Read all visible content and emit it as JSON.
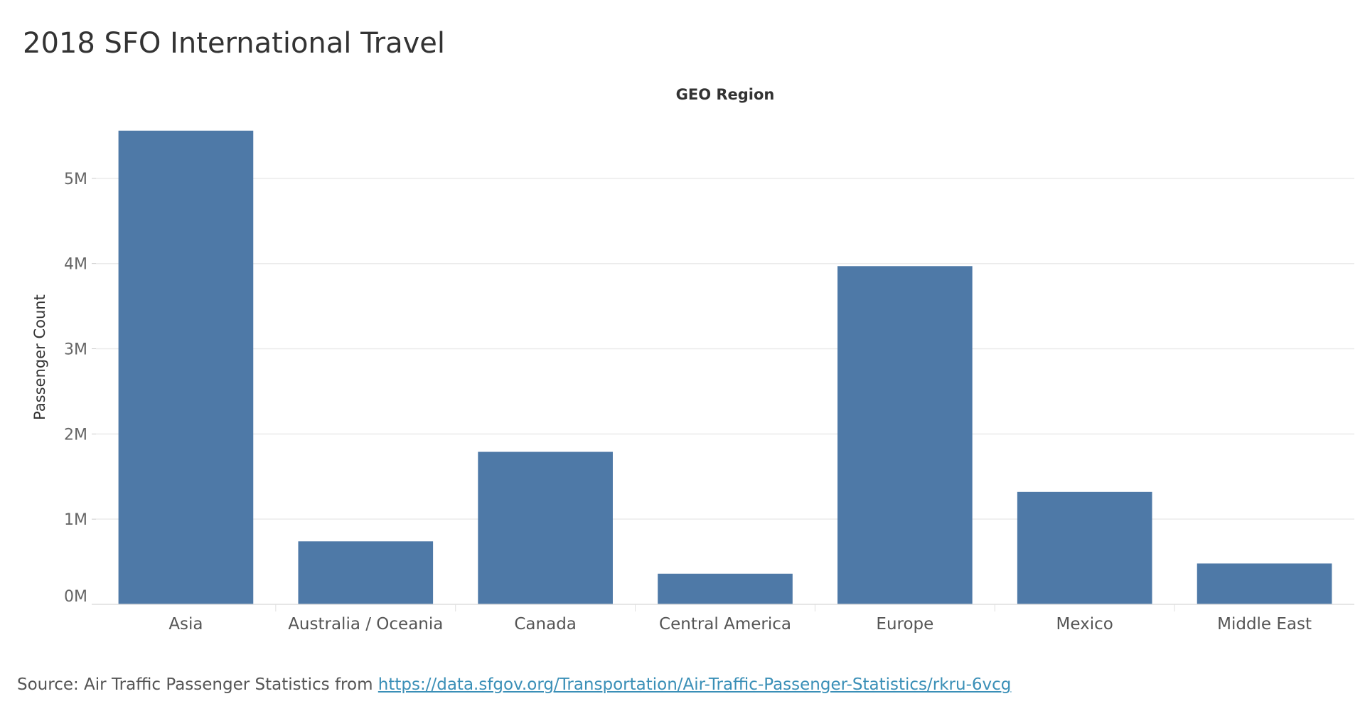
{
  "colors": {
    "bar": "#4e79a7",
    "grid": "#ebebeb",
    "link": "#3a8fb7"
  },
  "source": {
    "prefix": "Source: Air Traffic Passenger Statistics from ",
    "link_text": "https://data.sfgov.org/Transportation/Air-Traffic-Passenger-Statistics/rkru-6vcg"
  },
  "chart_data": {
    "type": "bar",
    "title": "2018 SFO International Travel",
    "column_header": "GEO Region",
    "ylabel": "Passenger Count",
    "xlabel": "",
    "categories": [
      "Asia",
      "Australia / Oceania",
      "Canada",
      "Central America",
      "Europe",
      "Mexico",
      "Middle East"
    ],
    "values": [
      5560000,
      740000,
      1790000,
      360000,
      3970000,
      1320000,
      480000
    ],
    "ylim": [
      0,
      5800000
    ],
    "yticks": [
      0,
      1000000,
      2000000,
      3000000,
      4000000,
      5000000
    ],
    "ytick_labels": [
      "0M",
      "1M",
      "2M",
      "3M",
      "4M",
      "5M"
    ],
    "grid": true,
    "legend": "none"
  }
}
